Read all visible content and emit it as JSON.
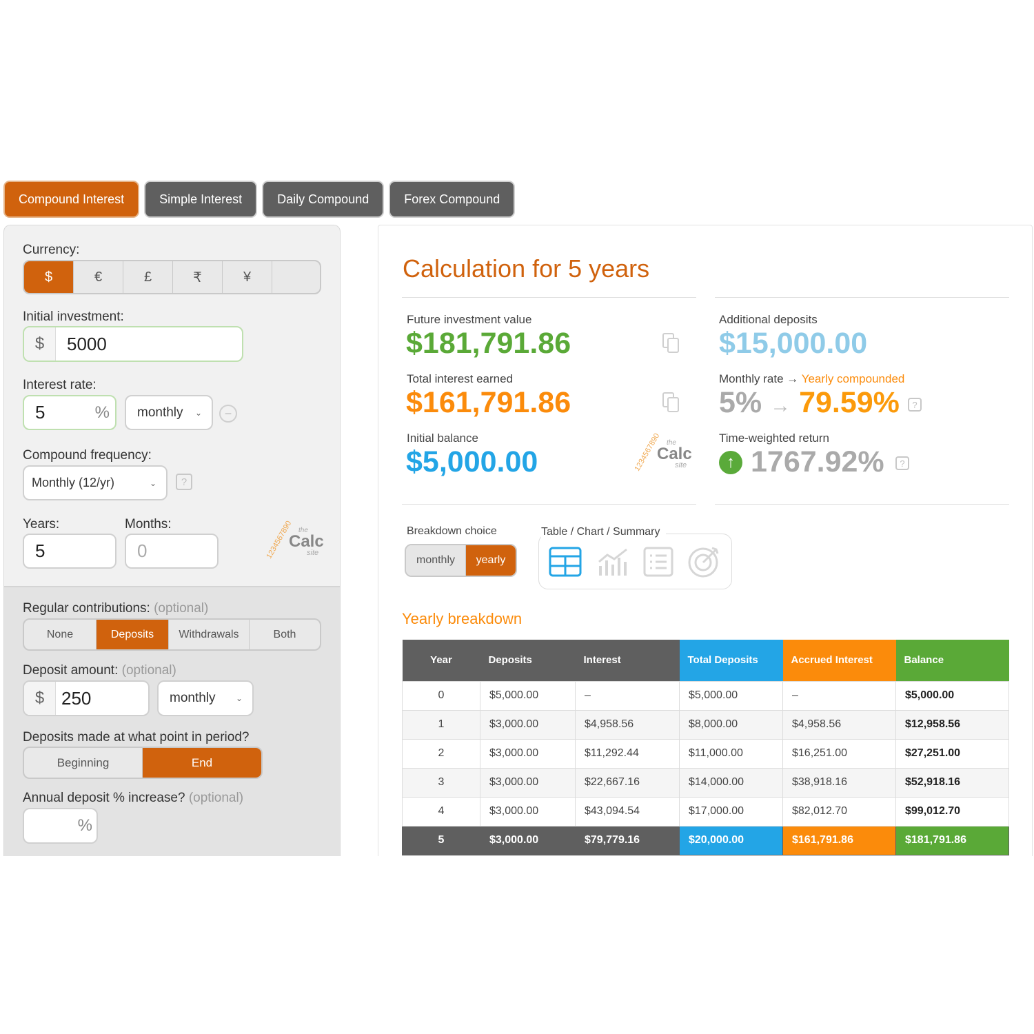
{
  "tabs": [
    "Compound Interest",
    "Simple Interest",
    "Daily Compound",
    "Forex Compound"
  ],
  "left": {
    "currency_label": "Currency:",
    "currencies": [
      "$",
      "€",
      "£",
      "₹",
      "¥",
      ""
    ],
    "initial_label": "Initial investment:",
    "initial_prefix": "$",
    "initial_value": "5000",
    "rate_label": "Interest rate:",
    "rate_value": "5",
    "rate_suffix": "%",
    "rate_period": "monthly",
    "minus": "−",
    "freq_label": "Compound frequency:",
    "freq_value": "Monthly (12/yr)",
    "help": "?",
    "years_label": "Years:",
    "years_value": "5",
    "months_label": "Months:",
    "months_placeholder": "0",
    "contrib_label": "Regular contributions:",
    "contrib_opt": "(optional)",
    "contrib_options": [
      "None",
      "Deposits",
      "Withdrawals",
      "Both"
    ],
    "deposit_label": "Deposit amount:",
    "deposit_opt": "(optional)",
    "deposit_prefix": "$",
    "deposit_value": "250",
    "deposit_period": "monthly",
    "point_label": "Deposits made at what point in period?",
    "point_options": [
      "Beginning",
      "End"
    ],
    "increase_label": "Annual deposit % increase?",
    "increase_opt": "(optional)",
    "increase_suffix": "%",
    "logo": {
      "nums": "1234567890",
      "the": "the",
      "calc": "Calc",
      "site": "site"
    }
  },
  "right": {
    "title": "Calculation for 5 years",
    "future_label": "Future investment value",
    "future_value": "$181,791.86",
    "interest_label": "Total interest earned",
    "interest_value": "$161,791.86",
    "initial_label": "Initial balance",
    "initial_value": "$5,000.00",
    "add_label": "Additional deposits",
    "add_value": "$15,000.00",
    "rate_label_a": "Monthly rate",
    "rate_label_arrow": "→",
    "rate_label_b": "Yearly compounded",
    "rate_from": "5%",
    "rate_arrow": "→",
    "rate_to": "79.59%",
    "twr_label": "Time-weighted return",
    "twr_value": "1767.92%",
    "up_arrow": "↑",
    "help": "?",
    "breakdown_label": "Breakdown choice",
    "breakdown_options": [
      "monthly",
      "yearly"
    ],
    "view_label": "Table / Chart / Summary",
    "section_title": "Yearly breakdown",
    "logo": {
      "nums": "1234567890",
      "the": "the",
      "calc": "Calc",
      "site": "site"
    }
  },
  "table": {
    "headers": [
      "Year",
      "Deposits",
      "Interest",
      "Total Deposits",
      "Accrued Interest",
      "Balance"
    ],
    "rows": [
      [
        "0",
        "$5,000.00",
        "–",
        "$5,000.00",
        "–",
        "$5,000.00"
      ],
      [
        "1",
        "$3,000.00",
        "$4,958.56",
        "$8,000.00",
        "$4,958.56",
        "$12,958.56"
      ],
      [
        "2",
        "$3,000.00",
        "$11,292.44",
        "$11,000.00",
        "$16,251.00",
        "$27,251.00"
      ],
      [
        "3",
        "$3,000.00",
        "$22,667.16",
        "$14,000.00",
        "$38,918.16",
        "$52,918.16"
      ],
      [
        "4",
        "$3,000.00",
        "$43,094.54",
        "$17,000.00",
        "$82,012.70",
        "$99,012.70"
      ],
      [
        "5",
        "$3,000.00",
        "$79,779.16",
        "$20,000.00",
        "$161,791.86",
        "$181,791.86"
      ]
    ]
  },
  "colors": {
    "accent": "#d0620d",
    "green": "#5aa937",
    "orange": "#fb8b0b",
    "blue": "#23a5e6",
    "light_blue": "#8fcbe8",
    "grey": "#5f5f5f"
  }
}
